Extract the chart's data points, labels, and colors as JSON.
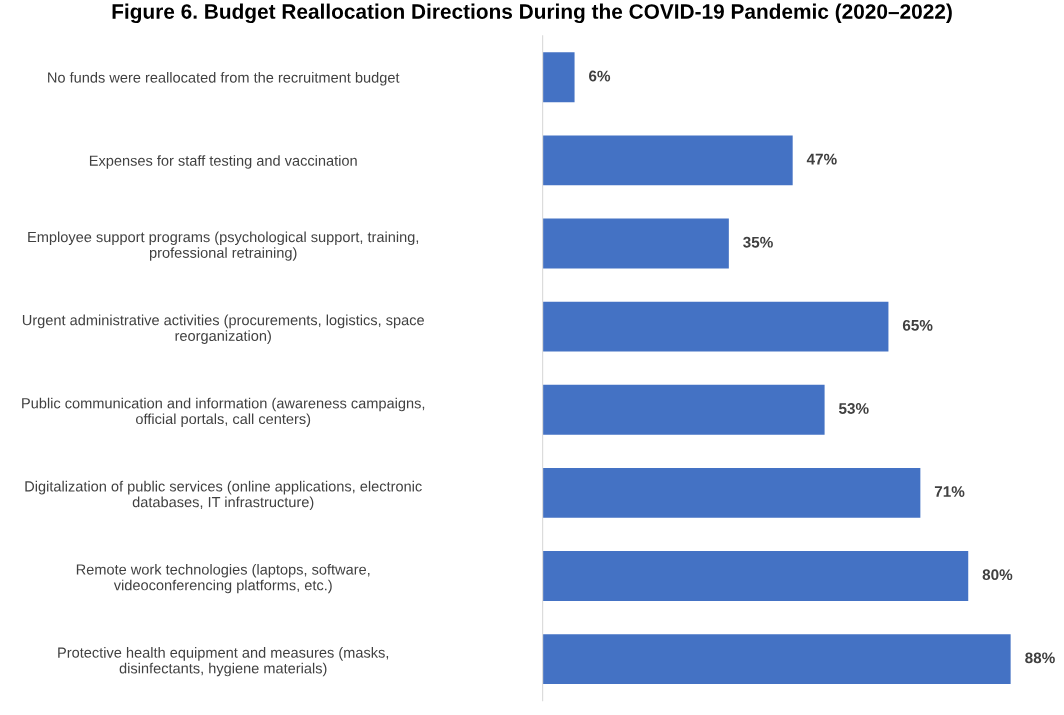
{
  "chart_data": {
    "type": "bar",
    "orientation": "horizontal",
    "title": "Figure 6. Budget Reallocation Directions During the COVID-19 Pandemic (2020–2022)",
    "categories": [
      "No funds were reallocated from the recruitment budget",
      "Expenses for staff testing and vaccination",
      "Employee support programs (psychological support, training,\nprofessional retraining)",
      "Urgent administrative activities (procurements, logistics, space\nreorganization)",
      "Public communication and information (awareness campaigns,\nofficial portals, call centers)",
      "Digitalization of public services (online applications, electronic\ndatabases, IT infrastructure)",
      "Remote work technologies (laptops, software,\nvideoconferencing platforms, etc.)",
      "Protective health equipment and measures (masks,\ndisinfectants, hygiene materials)"
    ],
    "values": [
      6,
      47,
      35,
      65,
      53,
      71,
      80,
      88
    ],
    "value_labels": [
      "6%",
      "47%",
      "35%",
      "65%",
      "53%",
      "71%",
      "80%",
      "88%"
    ],
    "color": "#4472c4",
    "grid": false,
    "legend": false
  }
}
